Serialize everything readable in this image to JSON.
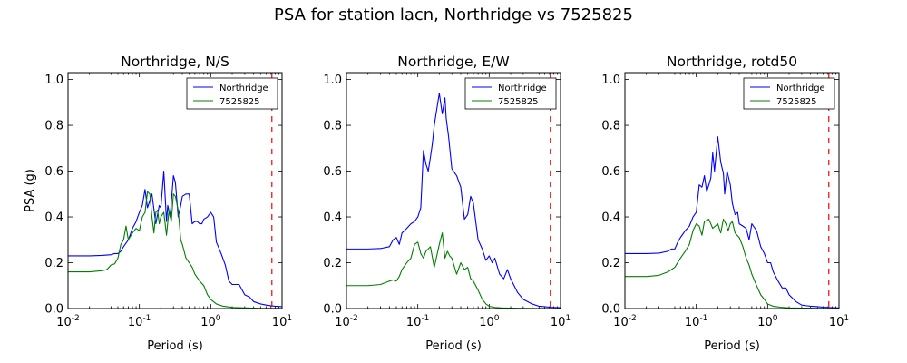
{
  "figure": {
    "title": "PSA for station lacn, Northridge vs 7525825"
  },
  "chart_data": [
    {
      "type": "line",
      "title": "Northridge, N/S",
      "xlabel": "Period (s)",
      "ylabel": "PSA (g)",
      "xscale": "log",
      "xlim": [
        0.01,
        10
      ],
      "ylim": [
        0,
        1.03
      ],
      "xticks": [
        0.01,
        0.1,
        1,
        10
      ],
      "xtick_labels": [
        {
          "base": "10",
          "exp": "-2"
        },
        {
          "base": "10",
          "exp": "-1"
        },
        {
          "base": "10",
          "exp": "0"
        },
        {
          "base": "10",
          "exp": "1"
        }
      ],
      "yticks": [
        "0.0",
        "0.2",
        "0.4",
        "0.6",
        "0.8",
        "1.0"
      ],
      "grid": false,
      "legend": "top-right",
      "vline": {
        "x": 7.2,
        "color": "#ff0000",
        "style": "dashed"
      },
      "series": [
        {
          "name": "Northridge",
          "color": "#0000ff",
          "x": [
            0.01,
            0.02,
            0.03,
            0.04,
            0.045,
            0.05,
            0.055,
            0.06,
            0.07,
            0.08,
            0.09,
            0.1,
            0.11,
            0.12,
            0.13,
            0.15,
            0.17,
            0.19,
            0.2,
            0.22,
            0.24,
            0.25,
            0.27,
            0.3,
            0.32,
            0.35,
            0.38,
            0.4,
            0.45,
            0.5,
            0.55,
            0.6,
            0.65,
            0.7,
            0.75,
            0.8,
            0.9,
            1.0,
            1.1,
            1.2,
            1.4,
            1.6,
            1.8,
            2.0,
            2.5,
            3.0,
            3.5,
            4.0,
            5.0,
            6.0,
            7.0,
            8.0,
            10.0
          ],
          "y": [
            0.23,
            0.23,
            0.232,
            0.235,
            0.24,
            0.24,
            0.25,
            0.27,
            0.3,
            0.35,
            0.38,
            0.42,
            0.45,
            0.52,
            0.44,
            0.5,
            0.37,
            0.45,
            0.44,
            0.6,
            0.38,
            0.45,
            0.4,
            0.58,
            0.55,
            0.4,
            0.45,
            0.49,
            0.5,
            0.5,
            0.37,
            0.38,
            0.38,
            0.37,
            0.37,
            0.39,
            0.4,
            0.42,
            0.4,
            0.29,
            0.24,
            0.19,
            0.12,
            0.105,
            0.105,
            0.06,
            0.05,
            0.03,
            0.02,
            0.015,
            0.012,
            0.01,
            0.008
          ]
        },
        {
          "name": "7525825",
          "color": "#008000",
          "x": [
            0.01,
            0.02,
            0.03,
            0.035,
            0.04,
            0.045,
            0.05,
            0.055,
            0.06,
            0.065,
            0.07,
            0.08,
            0.09,
            0.1,
            0.11,
            0.12,
            0.13,
            0.14,
            0.15,
            0.16,
            0.17,
            0.18,
            0.19,
            0.2,
            0.22,
            0.24,
            0.26,
            0.28,
            0.3,
            0.32,
            0.35,
            0.38,
            0.4,
            0.45,
            0.5,
            0.55,
            0.6,
            0.7,
            0.8,
            0.9,
            1.0,
            1.2,
            1.5,
            2.0,
            3.0,
            4.0,
            5.0,
            7.0,
            10.0
          ],
          "y": [
            0.16,
            0.16,
            0.165,
            0.17,
            0.19,
            0.195,
            0.22,
            0.28,
            0.3,
            0.36,
            0.3,
            0.33,
            0.35,
            0.34,
            0.4,
            0.42,
            0.51,
            0.5,
            0.4,
            0.33,
            0.42,
            0.43,
            0.37,
            0.4,
            0.42,
            0.32,
            0.43,
            0.38,
            0.5,
            0.49,
            0.43,
            0.3,
            0.28,
            0.22,
            0.2,
            0.18,
            0.15,
            0.12,
            0.1,
            0.06,
            0.04,
            0.02,
            0.01,
            0.005,
            0.003,
            0.002,
            0.001,
            0.001,
            0.0005
          ]
        }
      ]
    },
    {
      "type": "line",
      "title": "Northridge, E/W",
      "xlabel": "Period (s)",
      "ylabel": "",
      "xscale": "log",
      "xlim": [
        0.01,
        10
      ],
      "ylim": [
        0,
        1.03
      ],
      "xticks": [
        0.01,
        0.1,
        1,
        10
      ],
      "xtick_labels": [
        {
          "base": "10",
          "exp": "-2"
        },
        {
          "base": "10",
          "exp": "-1"
        },
        {
          "base": "10",
          "exp": "0"
        },
        {
          "base": "10",
          "exp": "1"
        }
      ],
      "yticks": [
        "0.0",
        "0.2",
        "0.4",
        "0.6",
        "0.8",
        "1.0"
      ],
      "grid": false,
      "legend": "top-right",
      "vline": {
        "x": 7.2,
        "color": "#ff0000",
        "style": "dashed"
      },
      "series": [
        {
          "name": "Northridge",
          "color": "#0000ff",
          "x": [
            0.01,
            0.02,
            0.03,
            0.04,
            0.045,
            0.05,
            0.055,
            0.06,
            0.07,
            0.08,
            0.09,
            0.1,
            0.11,
            0.12,
            0.13,
            0.14,
            0.15,
            0.16,
            0.17,
            0.18,
            0.2,
            0.22,
            0.24,
            0.25,
            0.27,
            0.3,
            0.35,
            0.4,
            0.45,
            0.5,
            0.55,
            0.6,
            0.7,
            0.8,
            0.9,
            1.0,
            1.1,
            1.2,
            1.4,
            1.6,
            1.8,
            2.0,
            2.5,
            3.0,
            4.0,
            5.0,
            6.0,
            7.0,
            8.0,
            10.0
          ],
          "y": [
            0.26,
            0.26,
            0.262,
            0.27,
            0.3,
            0.31,
            0.28,
            0.33,
            0.35,
            0.37,
            0.38,
            0.4,
            0.44,
            0.69,
            0.63,
            0.6,
            0.66,
            0.72,
            0.8,
            0.85,
            0.94,
            0.85,
            0.92,
            0.83,
            0.75,
            0.61,
            0.58,
            0.53,
            0.39,
            0.41,
            0.49,
            0.46,
            0.3,
            0.26,
            0.21,
            0.23,
            0.2,
            0.22,
            0.15,
            0.13,
            0.17,
            0.13,
            0.07,
            0.04,
            0.02,
            0.01,
            0.008,
            0.006,
            0.005,
            0.004
          ]
        },
        {
          "name": "7525825",
          "color": "#008000",
          "x": [
            0.01,
            0.02,
            0.03,
            0.04,
            0.045,
            0.05,
            0.055,
            0.06,
            0.07,
            0.08,
            0.09,
            0.1,
            0.11,
            0.12,
            0.13,
            0.15,
            0.17,
            0.2,
            0.22,
            0.24,
            0.26,
            0.28,
            0.3,
            0.35,
            0.4,
            0.45,
            0.5,
            0.55,
            0.6,
            0.7,
            0.8,
            0.9,
            1.0,
            1.2,
            1.5,
            2.0,
            3.0,
            5.0,
            10.0
          ],
          "y": [
            0.1,
            0.1,
            0.105,
            0.12,
            0.125,
            0.12,
            0.14,
            0.17,
            0.2,
            0.22,
            0.28,
            0.29,
            0.24,
            0.22,
            0.25,
            0.27,
            0.18,
            0.28,
            0.33,
            0.22,
            0.25,
            0.23,
            0.22,
            0.15,
            0.2,
            0.17,
            0.18,
            0.13,
            0.12,
            0.08,
            0.04,
            0.02,
            0.01,
            0.005,
            0.003,
            0.002,
            0.001,
            0.0005,
            0.0002
          ]
        }
      ]
    },
    {
      "type": "line",
      "title": "Northridge, rotd50",
      "xlabel": "Period (s)",
      "ylabel": "",
      "xscale": "log",
      "xlim": [
        0.01,
        10
      ],
      "ylim": [
        0,
        1.03
      ],
      "xticks": [
        0.01,
        0.1,
        1,
        10
      ],
      "xtick_labels": [
        {
          "base": "10",
          "exp": "-2"
        },
        {
          "base": "10",
          "exp": "-1"
        },
        {
          "base": "10",
          "exp": "0"
        },
        {
          "base": "10",
          "exp": "1"
        }
      ],
      "yticks": [
        "0.0",
        "0.2",
        "0.4",
        "0.6",
        "0.8",
        "1.0"
      ],
      "grid": false,
      "legend": "top-right",
      "vline": {
        "x": 7.2,
        "color": "#ff0000",
        "style": "dashed"
      },
      "series": [
        {
          "name": "Northridge",
          "color": "#0000ff",
          "x": [
            0.01,
            0.02,
            0.03,
            0.04,
            0.045,
            0.05,
            0.055,
            0.06,
            0.07,
            0.08,
            0.09,
            0.1,
            0.11,
            0.12,
            0.13,
            0.14,
            0.15,
            0.16,
            0.17,
            0.18,
            0.2,
            0.22,
            0.24,
            0.25,
            0.27,
            0.3,
            0.32,
            0.35,
            0.38,
            0.4,
            0.45,
            0.5,
            0.55,
            0.6,
            0.7,
            0.8,
            0.9,
            1.0,
            1.1,
            1.2,
            1.4,
            1.6,
            1.8,
            2.0,
            2.5,
            3.0,
            4.0,
            5.0,
            6.0,
            7.0,
            8.0,
            10.0
          ],
          "y": [
            0.24,
            0.24,
            0.242,
            0.25,
            0.26,
            0.26,
            0.29,
            0.31,
            0.34,
            0.36,
            0.4,
            0.42,
            0.54,
            0.53,
            0.58,
            0.51,
            0.54,
            0.57,
            0.68,
            0.6,
            0.75,
            0.64,
            0.59,
            0.5,
            0.6,
            0.54,
            0.46,
            0.41,
            0.42,
            0.37,
            0.36,
            0.35,
            0.3,
            0.37,
            0.34,
            0.27,
            0.24,
            0.2,
            0.2,
            0.16,
            0.12,
            0.09,
            0.09,
            0.06,
            0.03,
            0.015,
            0.01,
            0.008,
            0.006,
            0.005,
            0.004,
            0.003
          ]
        },
        {
          "name": "7525825",
          "color": "#008000",
          "x": [
            0.01,
            0.02,
            0.03,
            0.04,
            0.05,
            0.06,
            0.07,
            0.08,
            0.09,
            0.1,
            0.11,
            0.12,
            0.13,
            0.15,
            0.17,
            0.2,
            0.22,
            0.24,
            0.26,
            0.28,
            0.3,
            0.32,
            0.35,
            0.4,
            0.45,
            0.5,
            0.55,
            0.6,
            0.7,
            0.8,
            0.9,
            1.0,
            1.2,
            1.5,
            2.0,
            3.0,
            5.0,
            10.0
          ],
          "y": [
            0.14,
            0.14,
            0.145,
            0.16,
            0.18,
            0.22,
            0.25,
            0.28,
            0.34,
            0.37,
            0.36,
            0.32,
            0.38,
            0.39,
            0.35,
            0.37,
            0.33,
            0.39,
            0.37,
            0.34,
            0.37,
            0.38,
            0.33,
            0.31,
            0.27,
            0.22,
            0.19,
            0.15,
            0.1,
            0.06,
            0.04,
            0.02,
            0.01,
            0.006,
            0.003,
            0.002,
            0.001,
            0.0005
          ]
        }
      ]
    }
  ]
}
